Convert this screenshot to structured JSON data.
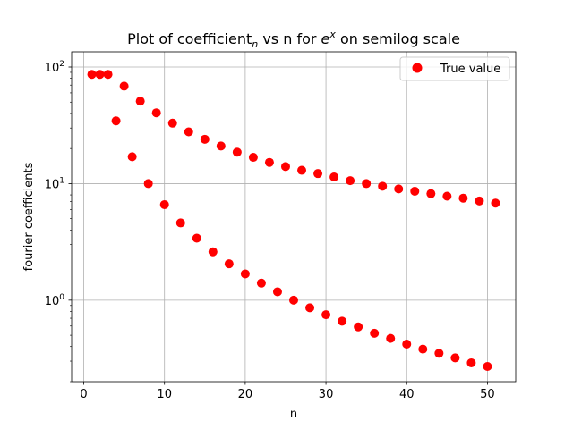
{
  "chart_data": {
    "type": "scatter",
    "title": {
      "prefix": "Plot of coefficient",
      "subscript": "n",
      "middle": " vs n for ",
      "base": "e",
      "superscript": "x",
      "suffix": " on semilog scale"
    },
    "xlabel": "n",
    "ylabel": "fourier coefficients",
    "x_scale": "linear",
    "y_scale": "log",
    "xlim": [
      -1.5,
      53.5
    ],
    "ylim": [
      0.2,
      135
    ],
    "x_ticks": [
      0,
      10,
      20,
      30,
      40,
      50
    ],
    "y_ticks": [
      {
        "value": 1,
        "base": "10",
        "exp": "0"
      },
      {
        "value": 10,
        "base": "10",
        "exp": "1"
      },
      {
        "value": 100,
        "base": "10",
        "exp": "2"
      }
    ],
    "grid": true,
    "legend_position": "top-right",
    "series": [
      {
        "name": "True value",
        "color": "#ff0000",
        "marker": "circle",
        "points": [
          [
            1,
            86.5
          ],
          [
            2,
            86.5
          ],
          [
            3,
            86.5
          ],
          [
            4,
            34.5
          ],
          [
            5,
            68.5
          ],
          [
            6,
            17.0
          ],
          [
            7,
            51.0
          ],
          [
            8,
            10.0
          ],
          [
            9,
            40.5
          ],
          [
            10,
            6.6
          ],
          [
            11,
            33.0
          ],
          [
            12,
            4.6
          ],
          [
            13,
            27.8
          ],
          [
            14,
            3.4
          ],
          [
            15,
            24.0
          ],
          [
            16,
            2.6
          ],
          [
            17,
            21.0
          ],
          [
            18,
            2.05
          ],
          [
            19,
            18.6
          ],
          [
            20,
            1.68
          ],
          [
            21,
            16.8
          ],
          [
            22,
            1.4
          ],
          [
            23,
            15.2
          ],
          [
            24,
            1.18
          ],
          [
            25,
            14.0
          ],
          [
            26,
            1.0
          ],
          [
            27,
            13.0
          ],
          [
            28,
            0.86
          ],
          [
            29,
            12.2
          ],
          [
            30,
            0.75
          ],
          [
            31,
            11.4
          ],
          [
            32,
            0.66
          ],
          [
            33,
            10.6
          ],
          [
            34,
            0.59
          ],
          [
            35,
            10.0
          ],
          [
            36,
            0.52
          ],
          [
            37,
            9.5
          ],
          [
            38,
            0.47
          ],
          [
            39,
            9.0
          ],
          [
            40,
            0.42
          ],
          [
            41,
            8.6
          ],
          [
            42,
            0.38
          ],
          [
            43,
            8.2
          ],
          [
            44,
            0.35
          ],
          [
            45,
            7.8
          ],
          [
            46,
            0.32
          ],
          [
            47,
            7.5
          ],
          [
            48,
            0.29
          ],
          [
            49,
            7.1
          ],
          [
            50,
            0.27
          ],
          [
            51,
            6.8
          ]
        ]
      }
    ]
  }
}
